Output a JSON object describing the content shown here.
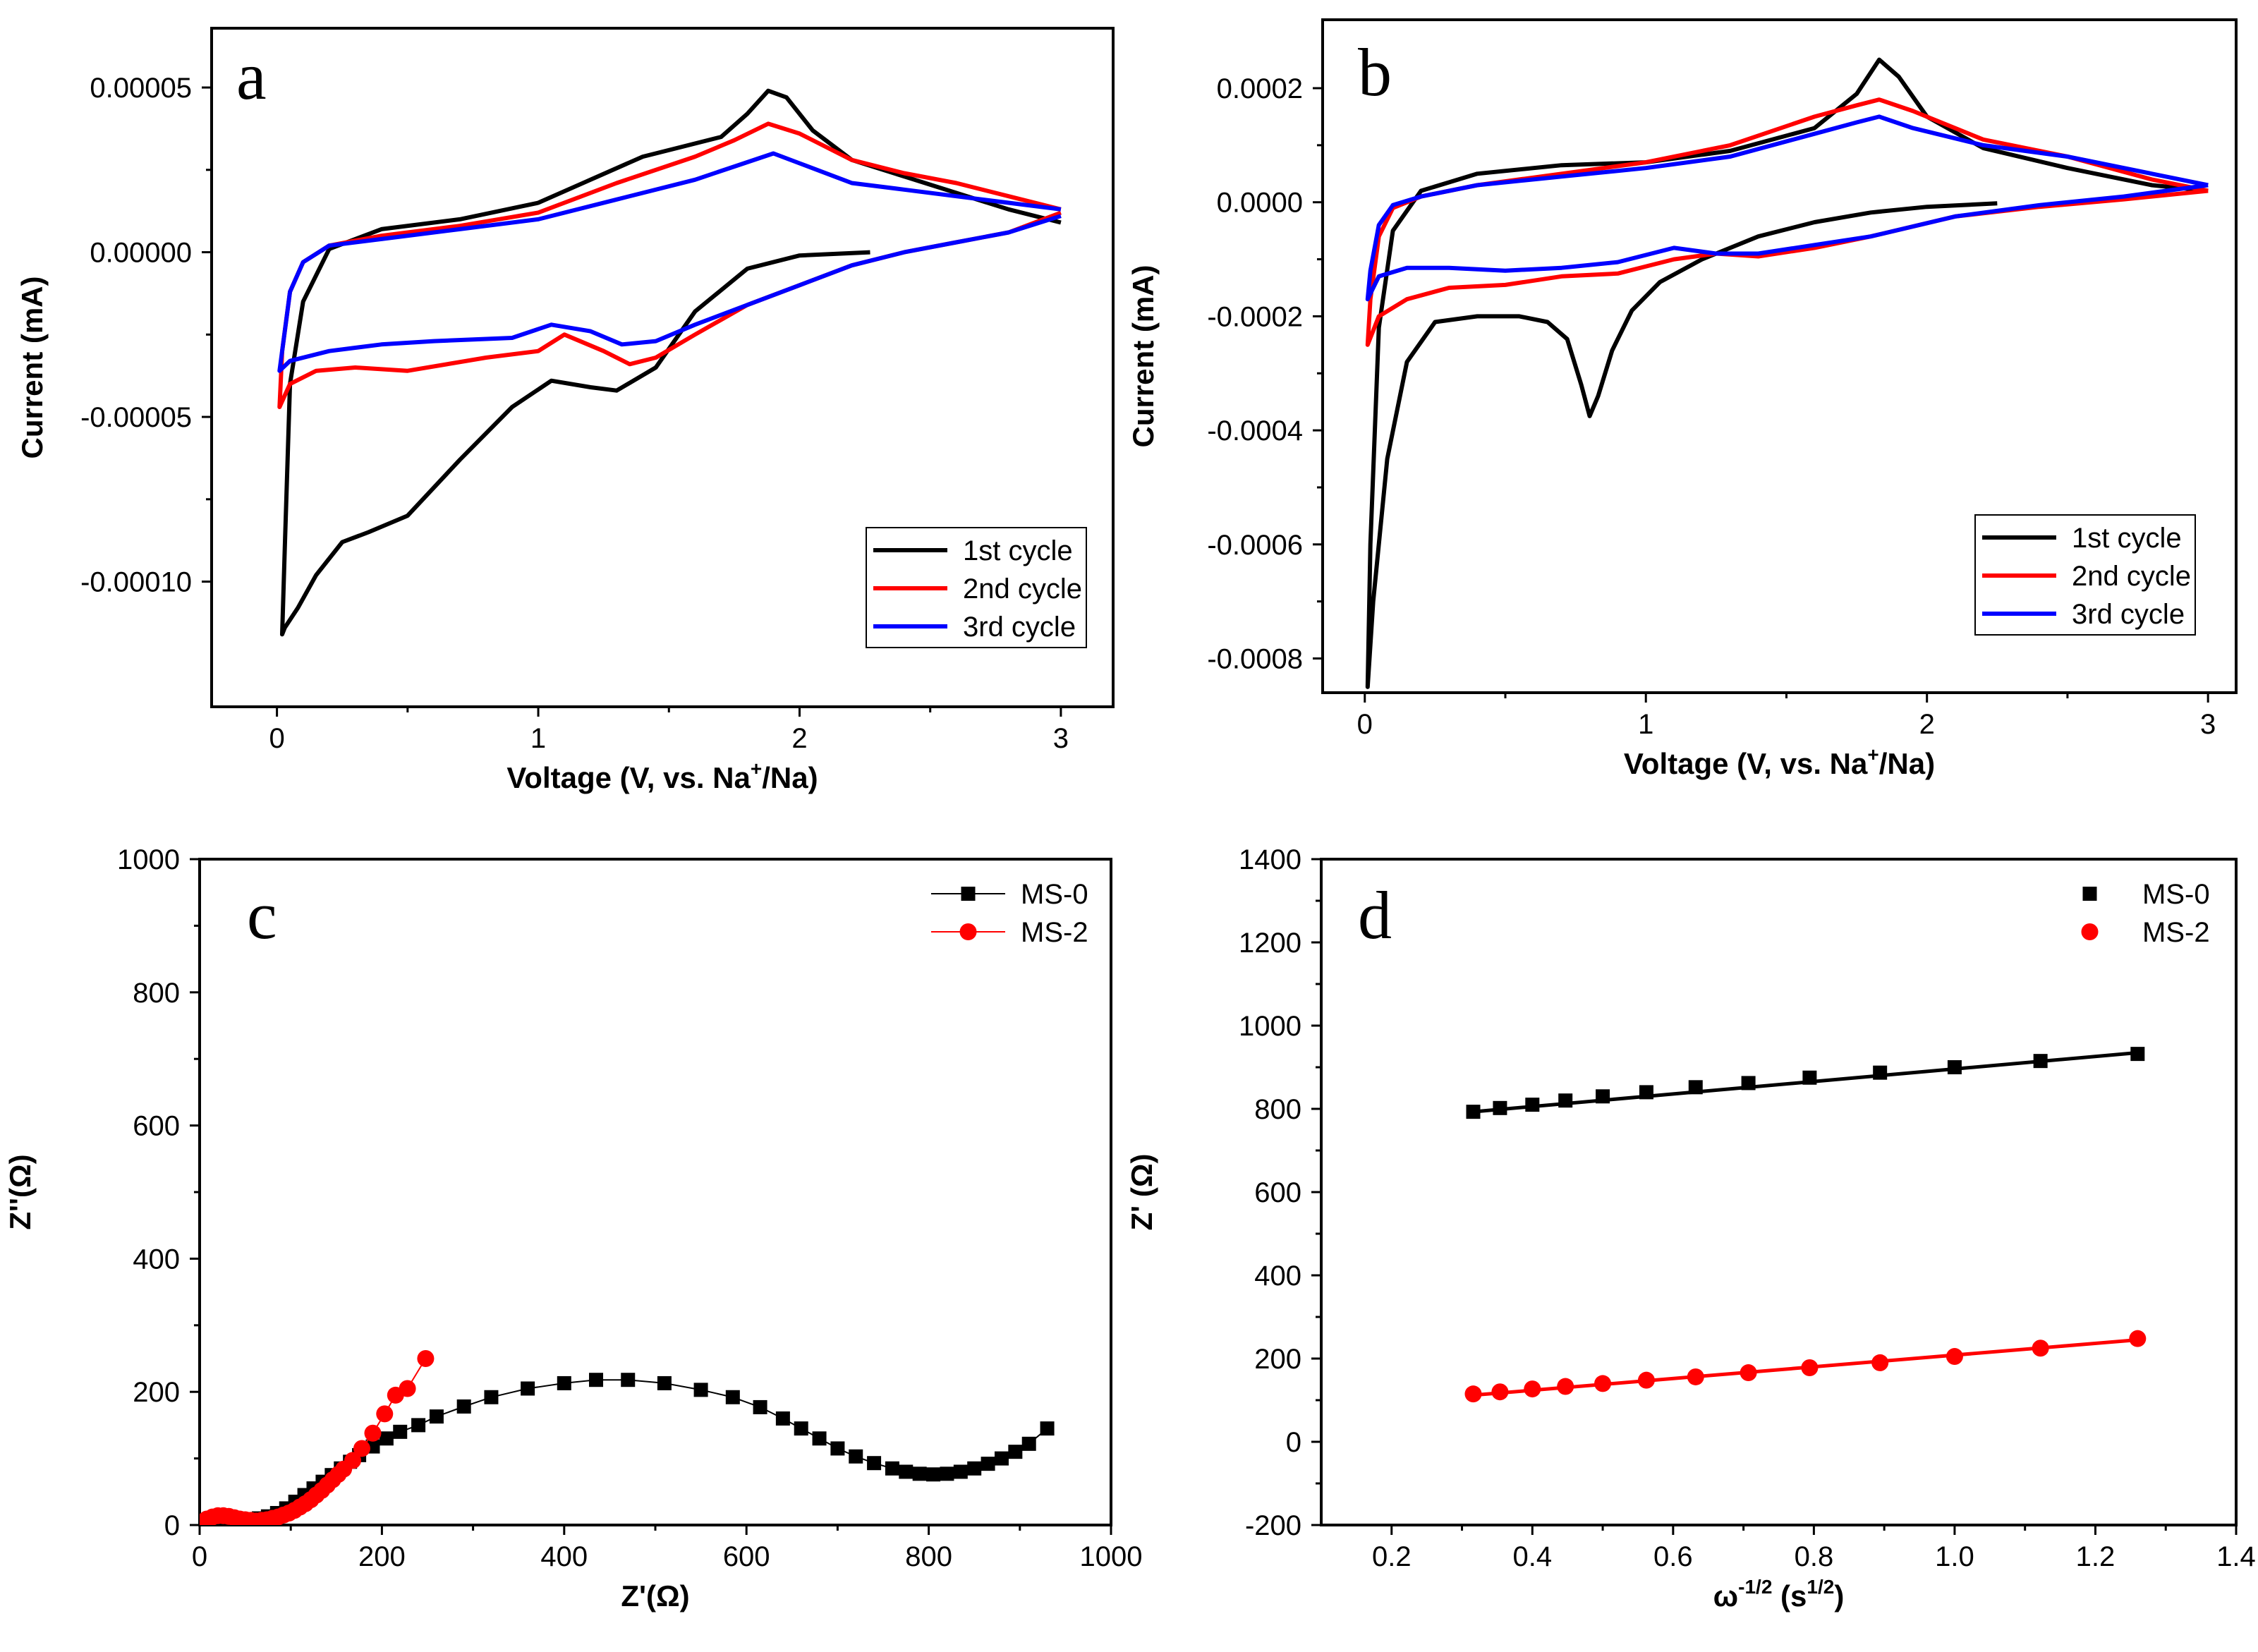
{
  "chart_data": [
    {
      "panel": "a",
      "type": "line",
      "xlabel": "Voltage (V, vs. Na",
      "xlabel_sup": "+",
      "xlabel_tail": "/Na)",
      "ylabel": "Current (mA)",
      "xlim": [
        -0.25,
        3.2
      ],
      "ylim": [
        -0.000138,
        6.8e-05
      ],
      "xticks": [
        0,
        1,
        2,
        3
      ],
      "xtick_labels": [
        "0",
        "1",
        "2",
        "3"
      ],
      "yticks": [
        5e-05,
        0.0,
        -5e-05,
        -0.0001
      ],
      "ytick_labels": [
        "0.00005",
        "0.00000",
        "-0.00005",
        "-0.00010"
      ],
      "legend": {
        "position": "bottom-right",
        "entries": [
          "1st cycle",
          "2nd cycle",
          "3rd cycle"
        ]
      },
      "series": [
        {
          "name": "1st cycle",
          "color": "#000000",
          "x": [
            2.27,
            2.0,
            1.8,
            1.6,
            1.45,
            1.3,
            1.2,
            1.05,
            0.9,
            0.7,
            0.5,
            0.35,
            0.25,
            0.15,
            0.08,
            0.03,
            0.02,
            0.03,
            0.05,
            0.1,
            0.2,
            0.4,
            0.7,
            1.0,
            1.2,
            1.4,
            1.55,
            1.7,
            1.8,
            1.88,
            1.95,
            2.05,
            2.2,
            2.4,
            2.6,
            2.8,
            3.0
          ],
          "y": [
            0.0,
            -1e-06,
            -5e-06,
            -1.8e-05,
            -3.5e-05,
            -4.2e-05,
            -4.1e-05,
            -3.9e-05,
            -4.7e-05,
            -6.3e-05,
            -8e-05,
            -8.5e-05,
            -8.8e-05,
            -9.8e-05,
            -0.000108,
            -0.000114,
            -0.000116,
            -9e-05,
            -4e-05,
            -1.5e-05,
            1e-06,
            7e-06,
            1e-05,
            1.5e-05,
            2.2e-05,
            2.9e-05,
            3.2e-05,
            3.5e-05,
            4.2e-05,
            4.9e-05,
            4.7e-05,
            3.7e-05,
            2.8e-05,
            2.3e-05,
            1.8e-05,
            1.3e-05,
            9e-06
          ]
        },
        {
          "name": "2nd cycle",
          "color": "#ff0000",
          "x": [
            3.0,
            2.8,
            2.6,
            2.4,
            2.2,
            2.0,
            1.8,
            1.6,
            1.45,
            1.35,
            1.25,
            1.1,
            1.0,
            0.8,
            0.5,
            0.3,
            0.15,
            0.05,
            0.01,
            0.02,
            0.05,
            0.1,
            0.2,
            0.4,
            0.7,
            1.0,
            1.3,
            1.6,
            1.75,
            1.88,
            2.0,
            2.2,
            2.4,
            2.6,
            2.8,
            3.0
          ],
          "y": [
            1.2e-05,
            6e-06,
            3e-06,
            0.0,
            -4e-06,
            -1e-05,
            -1.6e-05,
            -2.5e-05,
            -3.2e-05,
            -3.4e-05,
            -3e-05,
            -2.5e-05,
            -3e-05,
            -3.2e-05,
            -3.6e-05,
            -3.5e-05,
            -3.6e-05,
            -4e-05,
            -4.7e-05,
            -3e-05,
            -1.2e-05,
            -3e-06,
            2e-06,
            5e-06,
            8e-06,
            1.2e-05,
            2.1e-05,
            2.9e-05,
            3.4e-05,
            3.9e-05,
            3.6e-05,
            2.8e-05,
            2.4e-05,
            2.1e-05,
            1.7e-05,
            1.3e-05
          ]
        },
        {
          "name": "3rd cycle",
          "color": "#0000ff",
          "x": [
            3.0,
            2.8,
            2.6,
            2.4,
            2.2,
            2.0,
            1.8,
            1.6,
            1.45,
            1.32,
            1.2,
            1.05,
            0.9,
            0.6,
            0.4,
            0.2,
            0.05,
            0.01,
            0.02,
            0.05,
            0.1,
            0.2,
            0.4,
            0.7,
            1.0,
            1.3,
            1.6,
            1.75,
            1.9,
            2.0,
            2.2,
            2.4,
            2.6,
            2.8,
            3.0
          ],
          "y": [
            1.1e-05,
            6e-06,
            3e-06,
            0.0,
            -4e-06,
            -1e-05,
            -1.6e-05,
            -2.2e-05,
            -2.7e-05,
            -2.8e-05,
            -2.4e-05,
            -2.2e-05,
            -2.6e-05,
            -2.7e-05,
            -2.8e-05,
            -3e-05,
            -3.3e-05,
            -3.6e-05,
            -3e-05,
            -1.2e-05,
            -3e-06,
            2e-06,
            4e-06,
            7e-06,
            1e-05,
            1.6e-05,
            2.2e-05,
            2.6e-05,
            3e-05,
            2.7e-05,
            2.1e-05,
            1.9e-05,
            1.7e-05,
            1.5e-05,
            1.3e-05
          ]
        }
      ]
    },
    {
      "panel": "b",
      "type": "line",
      "xlabel": "Voltage (V, vs. Na",
      "xlabel_sup": "+",
      "xlabel_tail": "/Na)",
      "ylabel": "Current (mA)",
      "xlim": [
        -0.15,
        3.1
      ],
      "ylim": [
        -0.00086,
        0.00032
      ],
      "xticks": [
        0,
        1,
        2,
        3
      ],
      "xtick_labels": [
        "0",
        "1",
        "2",
        "3"
      ],
      "yticks": [
        0.0002,
        0.0,
        -0.0002,
        -0.0004,
        -0.0006,
        -0.0008
      ],
      "ytick_labels": [
        "0.0002",
        "0.0000",
        "-0.0002",
        "-0.0004",
        "-0.0006",
        "-0.0008"
      ],
      "legend": {
        "position": "bottom-right",
        "entries": [
          "1st cycle",
          "2nd cycle",
          "3rd cycle"
        ]
      },
      "series": [
        {
          "name": "1st cycle",
          "color": "#000000",
          "x": [
            2.25,
            2.0,
            1.8,
            1.6,
            1.4,
            1.2,
            1.05,
            0.95,
            0.88,
            0.83,
            0.8,
            0.77,
            0.72,
            0.65,
            0.55,
            0.4,
            0.25,
            0.15,
            0.08,
            0.03,
            0.01,
            0.02,
            0.05,
            0.1,
            0.2,
            0.4,
            0.7,
            1.0,
            1.3,
            1.6,
            1.75,
            1.83,
            1.9,
            2.0,
            2.2,
            2.5,
            2.8,
            3.0
          ],
          "y": [
            -2e-06,
            -8e-06,
            -1.8e-05,
            -3.5e-05,
            -6e-05,
            -0.0001,
            -0.00014,
            -0.00019,
            -0.00026,
            -0.00034,
            -0.000375,
            -0.00032,
            -0.00024,
            -0.00021,
            -0.0002,
            -0.0002,
            -0.00021,
            -0.00028,
            -0.00045,
            -0.0007,
            -0.00085,
            -0.0006,
            -0.00022,
            -5e-05,
            2e-05,
            5e-05,
            6.5e-05,
            7e-05,
            9e-05,
            0.00013,
            0.00019,
            0.00025,
            0.00022,
            0.00015,
            9.5e-05,
            6e-05,
            3e-05,
            2e-05
          ]
        },
        {
          "name": "2nd cycle",
          "color": "#ff0000",
          "x": [
            3.0,
            2.7,
            2.4,
            2.1,
            1.8,
            1.6,
            1.4,
            1.25,
            1.1,
            0.9,
            0.7,
            0.5,
            0.3,
            0.15,
            0.05,
            0.01,
            0.02,
            0.05,
            0.1,
            0.2,
            0.4,
            0.7,
            1.0,
            1.3,
            1.6,
            1.75,
            1.83,
            1.95,
            2.2,
            2.5,
            2.8,
            3.0
          ],
          "y": [
            2e-05,
            5e-06,
            -8e-06,
            -2.5e-05,
            -6e-05,
            -8e-05,
            -9.5e-05,
            -9e-05,
            -0.0001,
            -0.000125,
            -0.00013,
            -0.000145,
            -0.00015,
            -0.00017,
            -0.0002,
            -0.00025,
            -0.00017,
            -6e-05,
            -1e-05,
            1e-05,
            3e-05,
            5e-05,
            7e-05,
            0.0001,
            0.00015,
            0.00017,
            0.00018,
            0.00016,
            0.00011,
            8e-05,
            4e-05,
            2e-05
          ]
        },
        {
          "name": "3rd cycle",
          "color": "#0000ff",
          "x": [
            3.0,
            2.7,
            2.4,
            2.1,
            1.8,
            1.6,
            1.4,
            1.25,
            1.1,
            0.9,
            0.7,
            0.5,
            0.3,
            0.15,
            0.05,
            0.01,
            0.02,
            0.05,
            0.1,
            0.2,
            0.4,
            0.7,
            1.0,
            1.3,
            1.6,
            1.75,
            1.83,
            1.95,
            2.2,
            2.5,
            2.8,
            3.0
          ],
          "y": [
            3e-05,
            1e-05,
            -5e-06,
            -2.5e-05,
            -6e-05,
            -7.5e-05,
            -9e-05,
            -9e-05,
            -8e-05,
            -0.000105,
            -0.000115,
            -0.00012,
            -0.000115,
            -0.000115,
            -0.00013,
            -0.00017,
            -0.00012,
            -4e-05,
            -5e-06,
            1e-05,
            3e-05,
            4.5e-05,
            6e-05,
            8e-05,
            0.00012,
            0.00014,
            0.00015,
            0.00013,
            0.0001,
            8e-05,
            5e-05,
            3e-05
          ]
        }
      ]
    },
    {
      "panel": "c",
      "type": "scatter",
      "xlabel": "Z'(Ω)",
      "ylabel": "Z''(Ω)",
      "xlim": [
        0,
        1000
      ],
      "ylim": [
        0,
        1000
      ],
      "xticks": [
        0,
        200,
        400,
        600,
        800,
        1000
      ],
      "xtick_labels": [
        "0",
        "200",
        "400",
        "600",
        "800",
        "1000"
      ],
      "yticks": [
        0,
        200,
        400,
        600,
        800,
        1000
      ],
      "ytick_labels": [
        "0",
        "200",
        "400",
        "600",
        "800",
        "1000"
      ],
      "legend": {
        "position": "top-right",
        "entries": [
          "MS-0",
          "MS-2"
        ]
      },
      "series": [
        {
          "name": "MS-0",
          "color": "#000000",
          "marker": "square",
          "x": [
            5,
            15,
            25,
            35,
            45,
            55,
            65,
            75,
            85,
            95,
            105,
            115,
            125,
            135,
            145,
            155,
            165,
            175,
            190,
            205,
            220,
            240,
            260,
            290,
            320,
            360,
            400,
            435,
            470,
            510,
            550,
            585,
            615,
            640,
            660,
            680,
            700,
            720,
            740,
            760,
            775,
            790,
            805,
            820,
            835,
            850,
            865,
            880,
            895,
            910,
            930
          ],
          "y": [
            3,
            6,
            8,
            8,
            7,
            8,
            10,
            13,
            18,
            25,
            35,
            45,
            55,
            65,
            75,
            85,
            95,
            105,
            118,
            130,
            140,
            150,
            163,
            178,
            192,
            205,
            213,
            218,
            218,
            213,
            203,
            192,
            177,
            160,
            145,
            130,
            115,
            103,
            93,
            85,
            80,
            77,
            76,
            77,
            80,
            85,
            92,
            100,
            110,
            122,
            145
          ]
        },
        {
          "name": "MS-2",
          "color": "#ff0000",
          "marker": "circle",
          "x": [
            3,
            8,
            14,
            20,
            26,
            32,
            38,
            44,
            50,
            56,
            62,
            68,
            74,
            80,
            86,
            92,
            98,
            104,
            110,
            116,
            122,
            128,
            134,
            140,
            146,
            152,
            158,
            168,
            178,
            190,
            203,
            215,
            228,
            248
          ],
          "y": [
            5,
            9,
            12,
            14,
            14,
            13,
            11,
            9,
            8,
            7,
            6,
            7,
            8,
            10,
            12,
            15,
            18,
            22,
            27,
            32,
            38,
            45,
            52,
            60,
            68,
            76,
            84,
            97,
            115,
            138,
            167,
            195,
            205,
            250
          ]
        }
      ]
    },
    {
      "panel": "d",
      "type": "scatter",
      "xlabel": "ω",
      "xlabel_sup": "-1/2",
      "xlabel_tail": " (s",
      "xlabel_sup2": "1/2",
      "xlabel_tail2": ")",
      "ylabel": "Z' (Ω)",
      "xlim": [
        0.1,
        1.4
      ],
      "ylim": [
        -200,
        1400
      ],
      "xticks": [
        0.2,
        0.4,
        0.6,
        0.8,
        1.0,
        1.2,
        1.4
      ],
      "xtick_labels": [
        "0.2",
        "0.4",
        "0.6",
        "0.8",
        "1.0",
        "1.2",
        "1.4"
      ],
      "yticks": [
        -200,
        0,
        200,
        400,
        600,
        800,
        1000,
        1200,
        1400
      ],
      "ytick_labels": [
        "-200",
        "0",
        "200",
        "400",
        "600",
        "800",
        "1000",
        "1200",
        "1400"
      ],
      "legend": {
        "position": "top-right",
        "entries": [
          "MS-0",
          "MS-2"
        ]
      },
      "series": [
        {
          "name": "MS-0",
          "color": "#000000",
          "marker": "square",
          "x": [
            0.316,
            0.354,
            0.4,
            0.447,
            0.5,
            0.562,
            0.632,
            0.707,
            0.794,
            0.894,
            1.0,
            1.122,
            1.26
          ],
          "y": [
            793,
            802,
            810,
            820,
            830,
            840,
            852,
            862,
            875,
            887,
            900,
            915,
            932
          ],
          "fit": [
            [
              0.316,
              793
            ],
            [
              1.26,
              935
            ]
          ]
        },
        {
          "name": "MS-2",
          "color": "#ff0000",
          "marker": "circle",
          "x": [
            0.316,
            0.354,
            0.4,
            0.447,
            0.5,
            0.562,
            0.632,
            0.707,
            0.794,
            0.894,
            1.0,
            1.122,
            1.26
          ],
          "y": [
            115,
            120,
            127,
            133,
            140,
            148,
            156,
            166,
            178,
            190,
            205,
            225,
            248
          ],
          "fit": [
            [
              0.316,
              112
            ],
            [
              1.26,
              245
            ]
          ]
        }
      ]
    }
  ]
}
